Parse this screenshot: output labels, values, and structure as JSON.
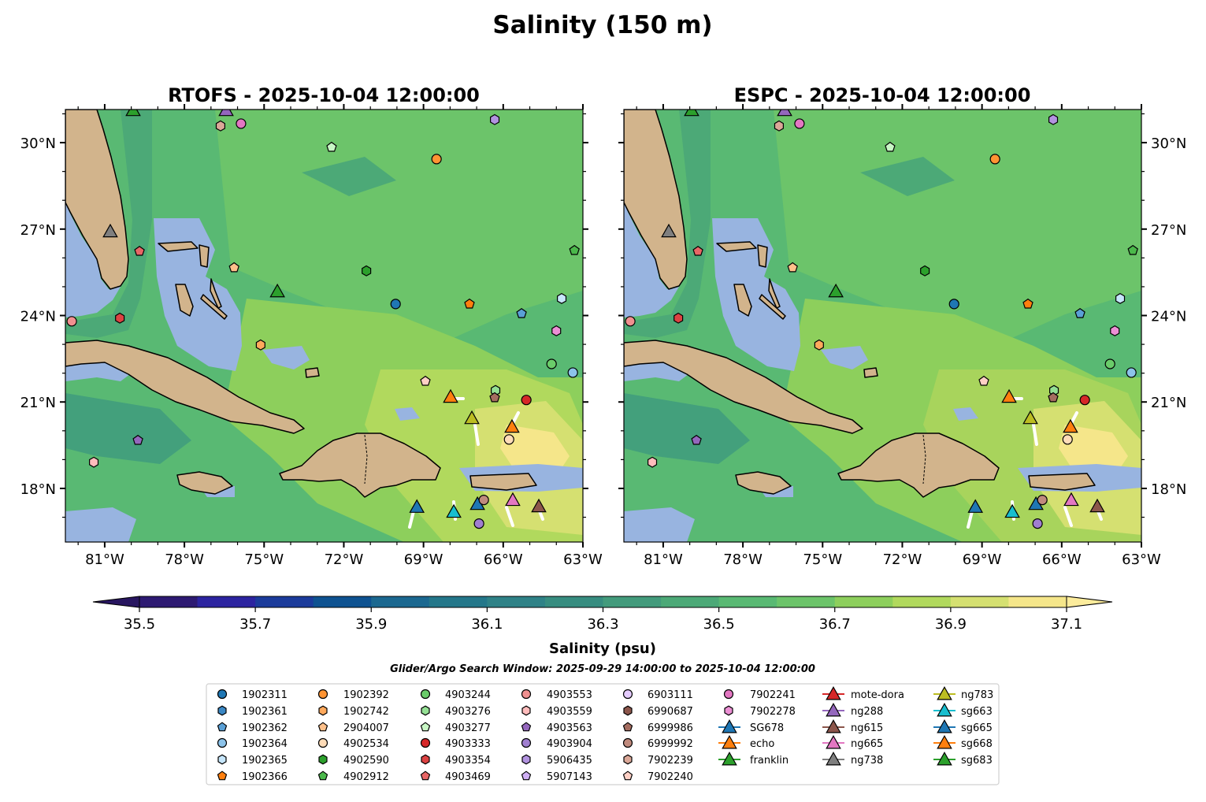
{
  "title": "Salinity (150 m)",
  "chart_data": {
    "type": "heatmap",
    "title": "Salinity (150 m)",
    "panels": [
      {
        "title": "RTOFS - 2025-10-04 12:00:00"
      },
      {
        "title": "ESPC - 2025-10-04 12:00:00"
      }
    ],
    "xlim": [
      -82.48,
      -63
    ],
    "ylim": [
      16.14,
      31.15
    ],
    "lon_ticks": [
      {
        "v": -81,
        "label": "81°W"
      },
      {
        "v": -78,
        "label": "78°W"
      },
      {
        "v": -75,
        "label": "75°W"
      },
      {
        "v": -72,
        "label": "72°W"
      },
      {
        "v": -69,
        "label": "69°W"
      },
      {
        "v": -66,
        "label": "66°W"
      },
      {
        "v": -63,
        "label": "63°W"
      }
    ],
    "lat_ticks": [
      {
        "v": 18,
        "label": "18°N"
      },
      {
        "v": 21,
        "label": "21°N"
      },
      {
        "v": 24,
        "label": "24°N"
      },
      {
        "v": 27,
        "label": "27°N"
      },
      {
        "v": 30,
        "label": "30°N"
      }
    ],
    "colorbar": {
      "label": "Salinity (psu)",
      "range": [
        35.5,
        37.1
      ],
      "ticks": [
        "35.5",
        "35.7",
        "35.9",
        "36.1",
        "36.3",
        "36.5",
        "36.7",
        "36.9",
        "37.1"
      ],
      "colors": [
        "#2d1a72",
        "#2c24a0",
        "#1b3b9b",
        "#0e5291",
        "#1b6890",
        "#24778a",
        "#2f8287",
        "#378d80",
        "#439b7c",
        "#4ca977",
        "#59b973",
        "#6cc46a",
        "#8dcf5c",
        "#b1d95d",
        "#d5e071",
        "#f5e68a"
      ],
      "under_color": "#281660",
      "over_color": "#fcec9c"
    },
    "search_window": "Glider/Argo Search Window: 2025-09-29 14:00:00 to 2025-10-04 12:00:00",
    "legend": [
      {
        "label": "1902311",
        "marker": "circle",
        "color": "#1f77b4"
      },
      {
        "label": "1902361",
        "marker": "hexagon",
        "color": "#3a87c4"
      },
      {
        "label": "1902362",
        "marker": "pentagon",
        "color": "#5aa0d6"
      },
      {
        "label": "1902364",
        "marker": "circle",
        "color": "#8cc3ea"
      },
      {
        "label": "1902365",
        "marker": "hexagon",
        "color": "#c6e6fb"
      },
      {
        "label": "1902366",
        "marker": "pentagon",
        "color": "#ff7f0e"
      },
      {
        "label": "1902392",
        "marker": "circle",
        "color": "#ff9433"
      },
      {
        "label": "1902742",
        "marker": "hexagon",
        "color": "#ffa95c"
      },
      {
        "label": "2904007",
        "marker": "pentagon",
        "color": "#ffc08a"
      },
      {
        "label": "4902534",
        "marker": "circle",
        "color": "#ffdcb8"
      },
      {
        "label": "4902590",
        "marker": "hexagon",
        "color": "#2ca02c"
      },
      {
        "label": "4902912",
        "marker": "pentagon",
        "color": "#4bb84b"
      },
      {
        "label": "4903244",
        "marker": "circle",
        "color": "#6acc6a"
      },
      {
        "label": "4903276",
        "marker": "hexagon",
        "color": "#94e094"
      },
      {
        "label": "4903277",
        "marker": "pentagon",
        "color": "#c8f7c5"
      },
      {
        "label": "4903333",
        "marker": "circle",
        "color": "#d62728"
      },
      {
        "label": "4903354",
        "marker": "hexagon",
        "color": "#dc4242"
      },
      {
        "label": "4903469",
        "marker": "pentagon",
        "color": "#e86666"
      },
      {
        "label": "4903553",
        "marker": "circle",
        "color": "#f09090"
      },
      {
        "label": "4903559",
        "marker": "hexagon",
        "color": "#ffbcbc"
      },
      {
        "label": "4903563",
        "marker": "pentagon",
        "color": "#9467bd"
      },
      {
        "label": "4903904",
        "marker": "circle",
        "color": "#a07fd0"
      },
      {
        "label": "5906435",
        "marker": "hexagon",
        "color": "#b293e0"
      },
      {
        "label": "5907143",
        "marker": "pentagon",
        "color": "#d0b0f5"
      },
      {
        "label": "6903111",
        "marker": "circle",
        "color": "#e5ccff"
      },
      {
        "label": "6990687",
        "marker": "hexagon",
        "color": "#8c564b"
      },
      {
        "label": "6999986",
        "marker": "pentagon",
        "color": "#a56d60"
      },
      {
        "label": "6999992",
        "marker": "circle",
        "color": "#c08a7d"
      },
      {
        "label": "7902239",
        "marker": "hexagon",
        "color": "#dba898"
      },
      {
        "label": "7902240",
        "marker": "pentagon",
        "color": "#ffd0c5"
      },
      {
        "label": "7902241",
        "marker": "circle",
        "color": "#e377c2"
      },
      {
        "label": "7902278",
        "marker": "hexagon",
        "color": "#ec8fd4"
      },
      {
        "label": "SG678",
        "marker": "triangle",
        "color": "#1f77b4"
      },
      {
        "label": "echo",
        "marker": "triangle",
        "color": "#ff7f0e"
      },
      {
        "label": "franklin",
        "marker": "triangle",
        "color": "#2ca02c"
      },
      {
        "label": "mote-dora",
        "marker": "triangle",
        "color": "#d62728"
      },
      {
        "label": "ng288",
        "marker": "triangle",
        "color": "#9467bd"
      },
      {
        "label": "ng615",
        "marker": "triangle",
        "color": "#8c564b"
      },
      {
        "label": "ng665",
        "marker": "triangle",
        "color": "#e377c2"
      },
      {
        "label": "ng738",
        "marker": "triangle",
        "color": "#7f7f7f"
      },
      {
        "label": "ng783",
        "marker": "triangle",
        "color": "#bcbd22"
      },
      {
        "label": "sg663",
        "marker": "triangle",
        "color": "#17becf"
      },
      {
        "label": "sg665",
        "marker": "triangle",
        "color": "#1f77b4"
      },
      {
        "label": "sg668",
        "marker": "triangle",
        "color": "#ff7f0e"
      },
      {
        "label": "sg683",
        "marker": "triangle",
        "color": "#2ca02c"
      }
    ],
    "observations": [
      {
        "id": "franklin",
        "lon": -79.93,
        "lat": 31.1
      },
      {
        "id": "ng288",
        "lon": -76.43,
        "lat": 31.1
      },
      {
        "id": "7902239",
        "lon": -76.64,
        "lat": 30.58
      },
      {
        "id": "7902241",
        "lon": -75.87,
        "lat": 30.66
      },
      {
        "id": "4903277",
        "lon": -72.46,
        "lat": 29.84
      },
      {
        "id": "1902392",
        "lon": -68.51,
        "lat": 29.43
      },
      {
        "id": "5906435",
        "lon": -66.32,
        "lat": 30.8
      },
      {
        "id": "ng738",
        "lon": -80.79,
        "lat": 26.89
      },
      {
        "id": "4903469",
        "lon": -79.69,
        "lat": 26.23
      },
      {
        "id": "2904007",
        "lon": -76.13,
        "lat": 25.66
      },
      {
        "id": "4902590",
        "lon": -71.15,
        "lat": 25.55
      },
      {
        "id": "sg683",
        "lon": -74.5,
        "lat": 24.81
      },
      {
        "id": "1902311",
        "lon": -70.05,
        "lat": 24.4
      },
      {
        "id": "1902366",
        "lon": -67.27,
        "lat": 24.4
      },
      {
        "id": "1902362",
        "lon": -65.31,
        "lat": 24.07
      },
      {
        "id": "4902912",
        "lon": -63.32,
        "lat": 26.26
      },
      {
        "id": "1902365",
        "lon": -63.8,
        "lat": 24.59
      },
      {
        "id": "4903553",
        "lon": -82.24,
        "lat": 23.8
      },
      {
        "id": "4903354",
        "lon": -80.43,
        "lat": 23.91
      },
      {
        "id": "1902742",
        "lon": -75.13,
        "lat": 22.98
      },
      {
        "id": "7902278",
        "lon": -64.0,
        "lat": 23.47
      },
      {
        "id": "4903244",
        "lon": -64.18,
        "lat": 22.32
      },
      {
        "id": "1902364",
        "lon": -63.38,
        "lat": 22.02
      },
      {
        "id": "7902240",
        "lon": -68.93,
        "lat": 21.72
      },
      {
        "id": "4903276",
        "lon": -66.29,
        "lat": 21.4
      },
      {
        "id": "6999986",
        "lon": -66.32,
        "lat": 21.15
      },
      {
        "id": "4903333",
        "lon": -65.13,
        "lat": 21.07
      },
      {
        "id": "echo",
        "lon": -67.98,
        "lat": 21.15
      },
      {
        "id": "ng783",
        "lon": -67.18,
        "lat": 20.41
      },
      {
        "id": "sg668",
        "lon": -65.67,
        "lat": 20.11
      },
      {
        "id": "4902534",
        "lon": -65.78,
        "lat": 19.7
      },
      {
        "id": "4903563",
        "lon": -79.75,
        "lat": 19.67
      },
      {
        "id": "4903559",
        "lon": -81.41,
        "lat": 18.91
      },
      {
        "id": "SG678",
        "lon": -69.25,
        "lat": 17.33
      },
      {
        "id": "sg663",
        "lon": -67.86,
        "lat": 17.16
      },
      {
        "id": "sg665",
        "lon": -66.97,
        "lat": 17.43
      },
      {
        "id": "6999992",
        "lon": -66.73,
        "lat": 17.6
      },
      {
        "id": "ng665",
        "lon": -65.64,
        "lat": 17.57
      },
      {
        "id": "ng615",
        "lon": -64.66,
        "lat": 17.35
      },
      {
        "id": "4903904",
        "lon": -66.91,
        "lat": 16.78
      }
    ]
  }
}
